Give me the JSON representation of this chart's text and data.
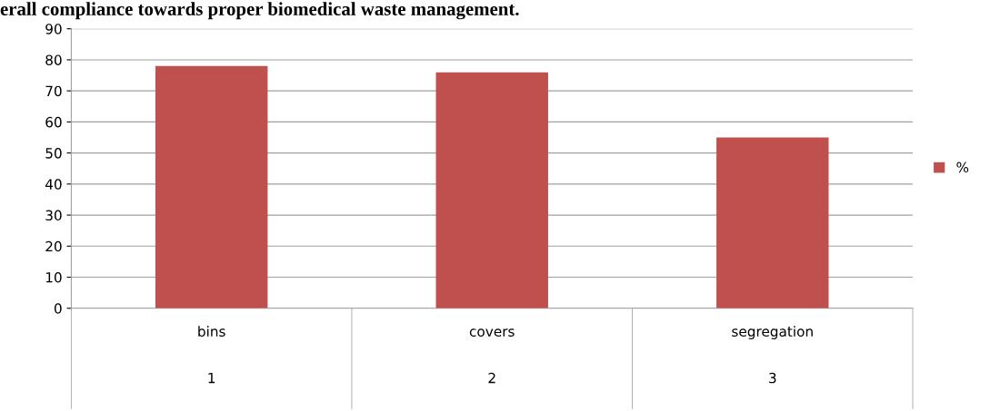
{
  "chart_data": {
    "type": "bar",
    "title": "erall compliance towards proper biomedical waste management.",
    "categories": [
      "bins\n\n\n1",
      "covers\n\n\n2",
      "segregation\n\n\n3"
    ],
    "series": [
      {
        "name": "%",
        "color": "#c0504d",
        "values": [
          78,
          76,
          55
        ]
      }
    ],
    "ylim": [
      0,
      90
    ],
    "yticks": [
      0,
      10,
      20,
      30,
      40,
      50,
      60,
      70,
      80,
      90
    ],
    "grid": "y",
    "legend": "right"
  }
}
